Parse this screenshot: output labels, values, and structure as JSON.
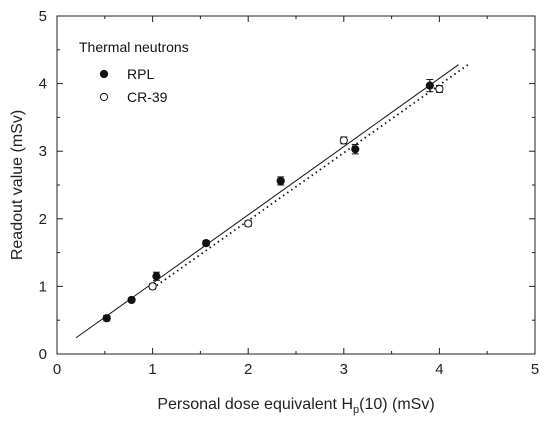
{
  "chart_data": {
    "type": "scatter",
    "xlabel": "Personal dose equivalent H",
    "xlabel_subscript": "p",
    "xlabel_suffix": "(10) (mSv)",
    "ylabel": "Readout value (mSv)",
    "xlim": [
      0,
      5
    ],
    "ylim": [
      0,
      5
    ],
    "xticks": [
      0,
      1,
      2,
      3,
      4,
      5
    ],
    "yticks": [
      0,
      1,
      2,
      3,
      4,
      5
    ],
    "xtick_labels": [
      "0",
      "1",
      "2",
      "3",
      "4",
      "5"
    ],
    "ytick_labels": [
      "0",
      "1",
      "2",
      "3",
      "4",
      "5"
    ],
    "grid": false,
    "legend": {
      "title": "Thermal neutrons",
      "placement": "top-left"
    },
    "series": [
      {
        "name": "RPL",
        "marker": "filled-circle",
        "fit": "solid",
        "fit_line": [
          [
            0.2,
            0.24
          ],
          [
            4.2,
            4.28
          ]
        ],
        "points": [
          {
            "x": 0.52,
            "y": 0.53,
            "err": 0.04
          },
          {
            "x": 0.78,
            "y": 0.8,
            "err": 0.03
          },
          {
            "x": 1.04,
            "y": 1.15,
            "err": 0.06
          },
          {
            "x": 1.56,
            "y": 1.64,
            "err": 0.04
          },
          {
            "x": 2.34,
            "y": 2.56,
            "err": 0.06
          },
          {
            "x": 3.12,
            "y": 3.03,
            "err": 0.07
          },
          {
            "x": 3.9,
            "y": 3.97,
            "err": 0.09
          }
        ]
      },
      {
        "name": "CR-39",
        "marker": "open-circle",
        "fit": "dotted",
        "fit_line": [
          [
            1.0,
            0.97
          ],
          [
            4.3,
            4.28
          ]
        ],
        "points": [
          {
            "x": 1.0,
            "y": 1.0,
            "err": 0.04
          },
          {
            "x": 2.0,
            "y": 1.93,
            "err": 0.04
          },
          {
            "x": 3.0,
            "y": 3.16,
            "err": 0.05
          },
          {
            "x": 4.0,
            "y": 3.92,
            "err": 0.05
          }
        ]
      }
    ]
  }
}
